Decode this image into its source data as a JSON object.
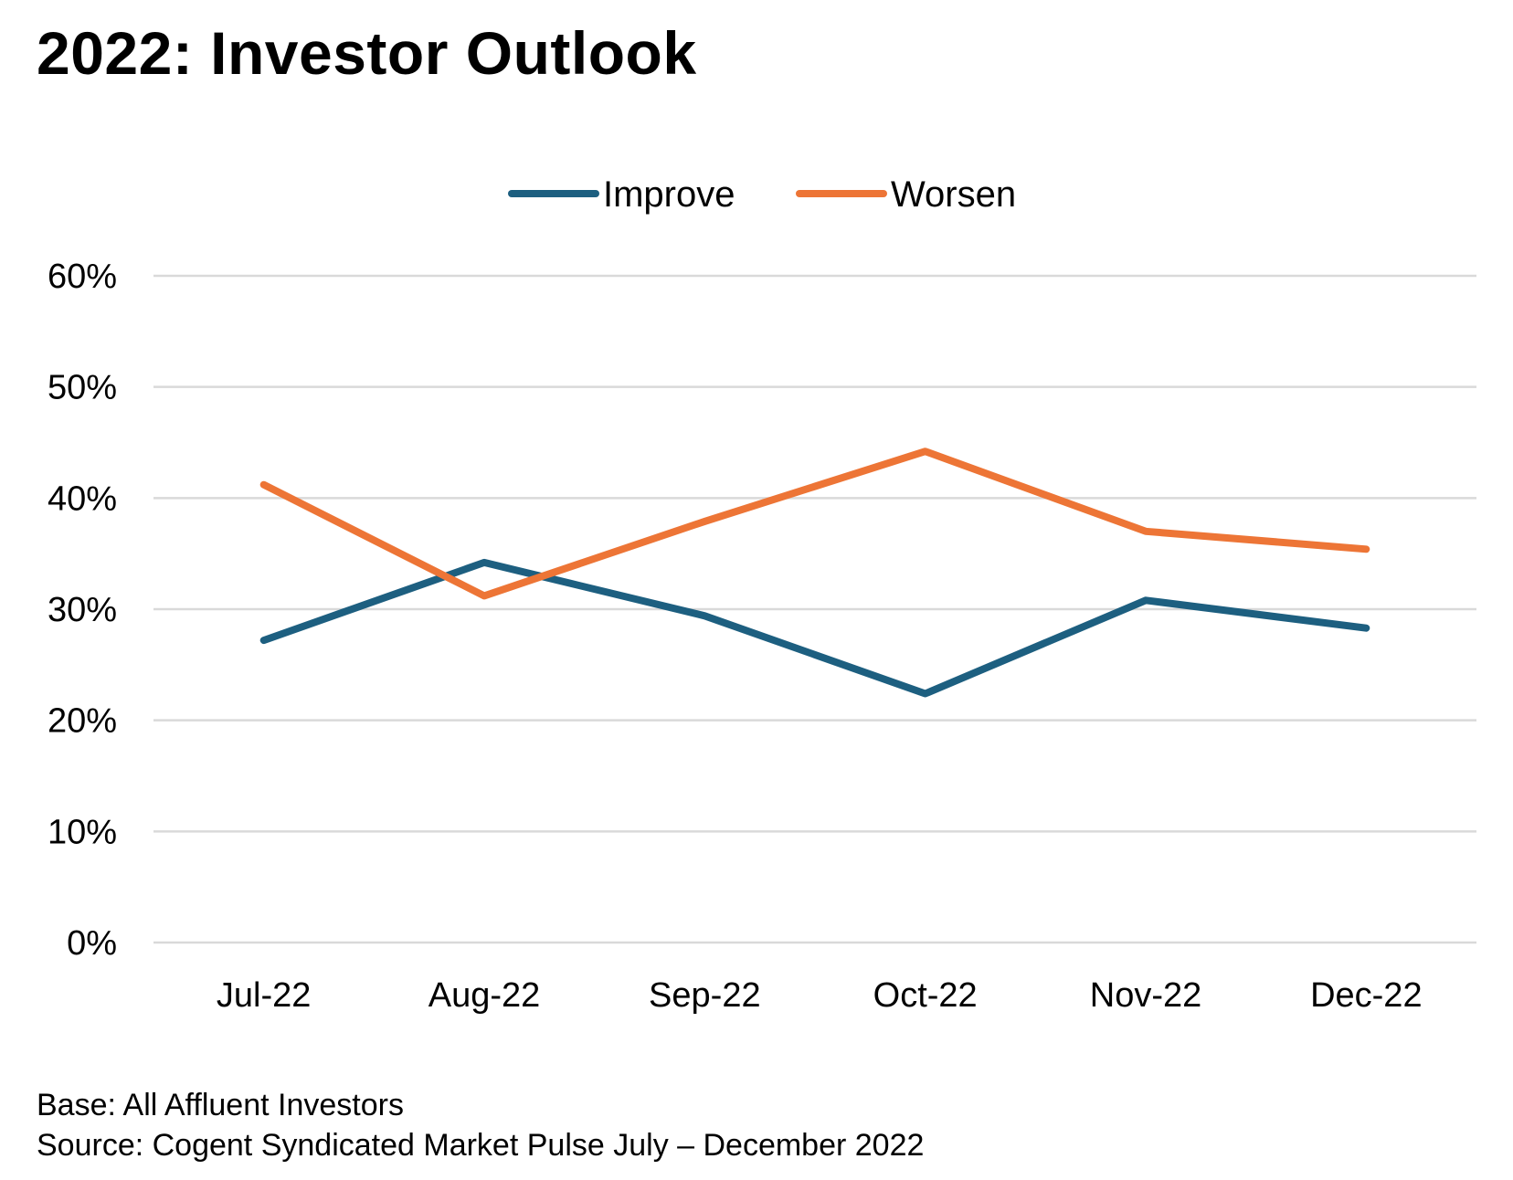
{
  "chart_data": {
    "type": "line",
    "title": "2022: Investor Outlook",
    "categories": [
      "Jul-22",
      "Aug-22",
      "Sep-22",
      "Oct-22",
      "Nov-22",
      "Dec-22"
    ],
    "series": [
      {
        "name": "Improve",
        "color": "#1d5f80",
        "values": [
          27.2,
          34.2,
          29.4,
          22.4,
          30.8,
          28.3
        ]
      },
      {
        "name": "Worsen",
        "color": "#ed7536",
        "values": [
          41.2,
          31.2,
          37.9,
          44.2,
          37.0,
          35.4
        ]
      }
    ],
    "y_ticks": [
      "0%",
      "10%",
      "20%",
      "30%",
      "40%",
      "50%",
      "60%"
    ],
    "ylim": [
      0,
      60
    ],
    "xlabel": "",
    "ylabel": "",
    "grid": true,
    "legend_position": "top-center",
    "gridline_color": "#d9d9d9"
  },
  "footnotes": {
    "base": "Base: All Affluent Investors",
    "source": "Source: Cogent Syndicated Market Pulse July – December 2022"
  }
}
